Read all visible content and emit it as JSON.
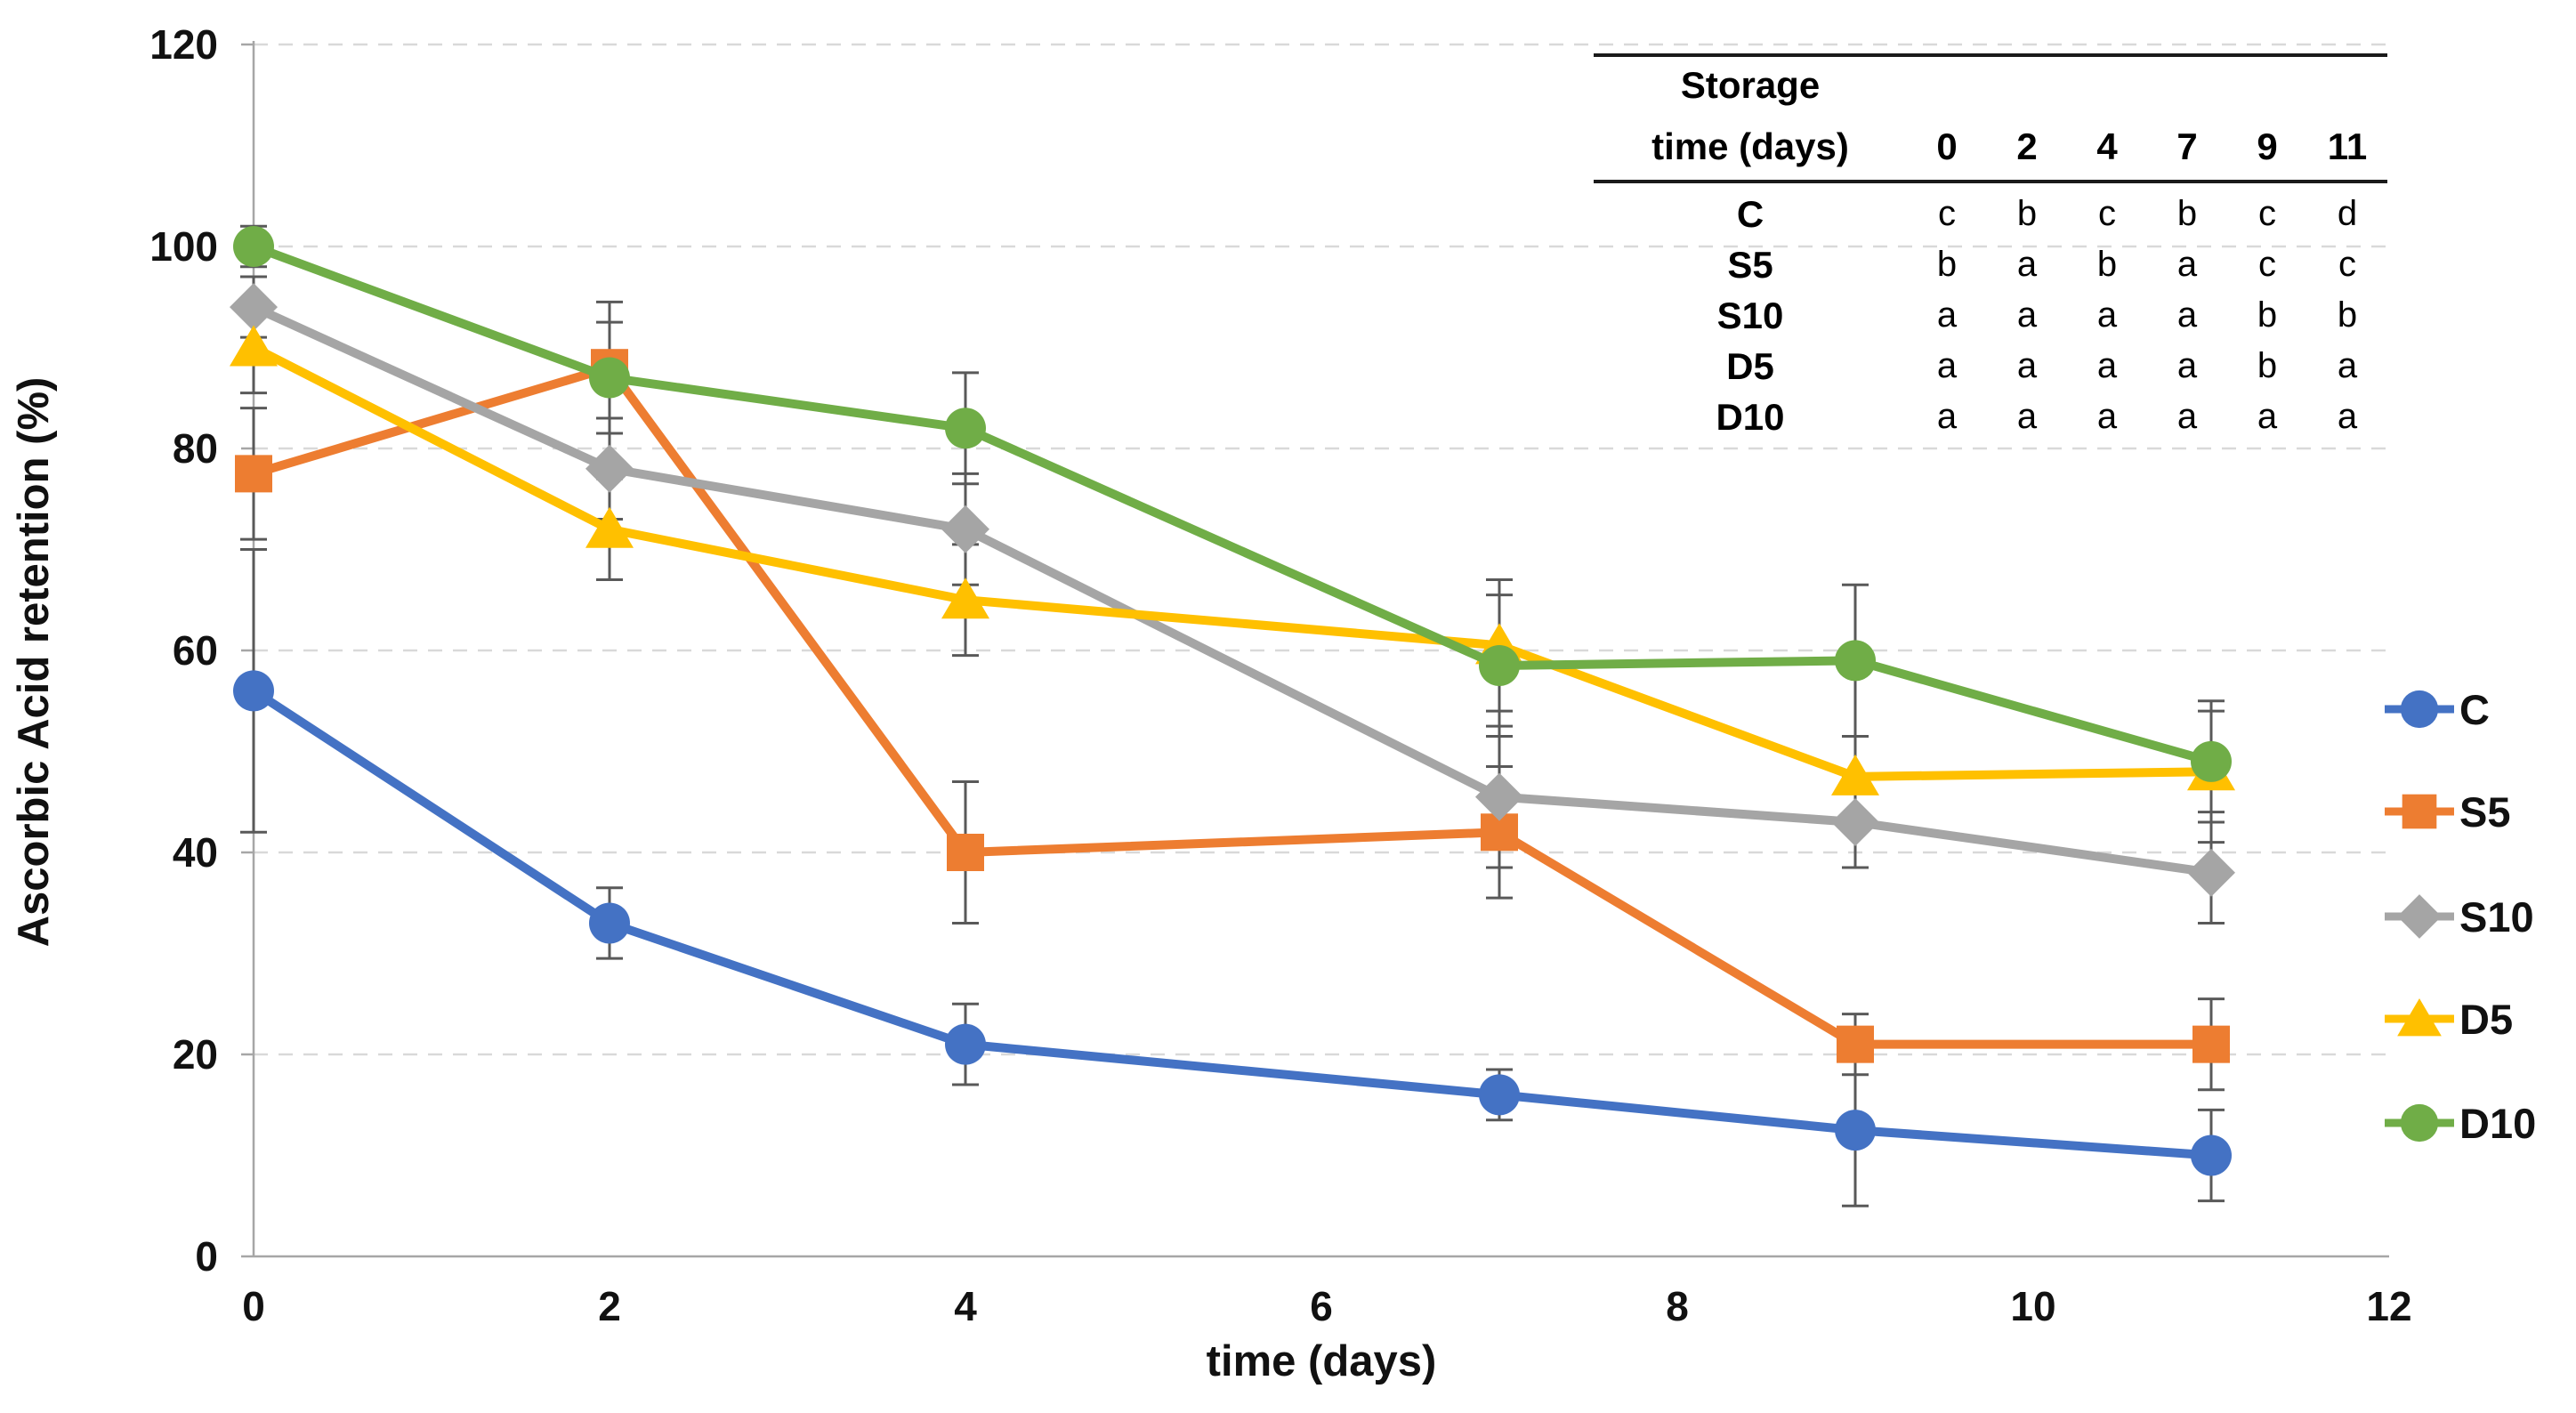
{
  "chart_data": {
    "type": "line",
    "x": [
      0,
      2,
      4,
      7,
      9,
      11
    ],
    "series": [
      {
        "name": "C",
        "marker": "circle",
        "color": "#4472C4",
        "values": [
          56,
          33,
          21,
          16,
          12.5,
          10
        ],
        "errors": [
          14,
          3.5,
          4,
          2.5,
          7.5,
          4.5
        ]
      },
      {
        "name": "S5",
        "marker": "square",
        "color": "#ED7D31",
        "values": [
          77.5,
          88,
          40,
          42,
          21,
          21
        ],
        "errors": [
          6.5,
          6.5,
          7,
          6.5,
          3,
          4.5
        ]
      },
      {
        "name": "S10",
        "marker": "diamond",
        "color": "#A5A5A5",
        "values": [
          94,
          78,
          72,
          45.5,
          43,
          38
        ],
        "errors": [
          3,
          5,
          5.5,
          7,
          4.5,
          5
        ]
      },
      {
        "name": "D5",
        "marker": "triangle",
        "color": "#FFC000",
        "values": [
          90,
          72,
          65,
          60.5,
          47.5,
          48
        ],
        "errors": [
          4.5,
          5,
          5.5,
          6.5,
          4,
          7
        ]
      },
      {
        "name": "D10",
        "marker": "circle",
        "color": "#70AD47",
        "values": [
          100,
          87,
          82,
          58.5,
          59,
          49
        ],
        "errors": [
          2,
          5.5,
          5.5,
          7,
          7.5,
          5
        ]
      }
    ],
    "title": "",
    "xlabel": "time (days)",
    "ylabel": "Ascorbic Acid retention (%)",
    "xlim": [
      0,
      12
    ],
    "ylim": [
      0,
      120
    ],
    "x_ticks": [
      0,
      2,
      4,
      6,
      8,
      10,
      12
    ],
    "y_ticks": [
      0,
      20,
      40,
      60,
      80,
      100,
      120
    ],
    "grid": "horizontal-dashed",
    "legend_position": "right",
    "error_bars": true
  },
  "inset_table": {
    "header_line1": "Storage",
    "header_line2": "time (days)",
    "columns": [
      "0",
      "2",
      "4",
      "7",
      "9",
      "11"
    ],
    "rows": [
      {
        "label": "C",
        "cells": [
          "c",
          "b",
          "c",
          "b",
          "c",
          "d"
        ]
      },
      {
        "label": "S5",
        "cells": [
          "b",
          "a",
          "b",
          "a",
          "c",
          "c"
        ]
      },
      {
        "label": "S10",
        "cells": [
          "a",
          "a",
          "a",
          "a",
          "b",
          "b"
        ]
      },
      {
        "label": "D5",
        "cells": [
          "a",
          "a",
          "a",
          "a",
          "b",
          "a"
        ]
      },
      {
        "label": "D10",
        "cells": [
          "a",
          "a",
          "a",
          "a",
          "a",
          "a"
        ]
      }
    ]
  },
  "colors": {
    "gridline": "#D9D9D9",
    "axis_line": "#A6A6A6",
    "error_bar": "#595959",
    "text": "#111111",
    "background": "#FFFFFF"
  }
}
